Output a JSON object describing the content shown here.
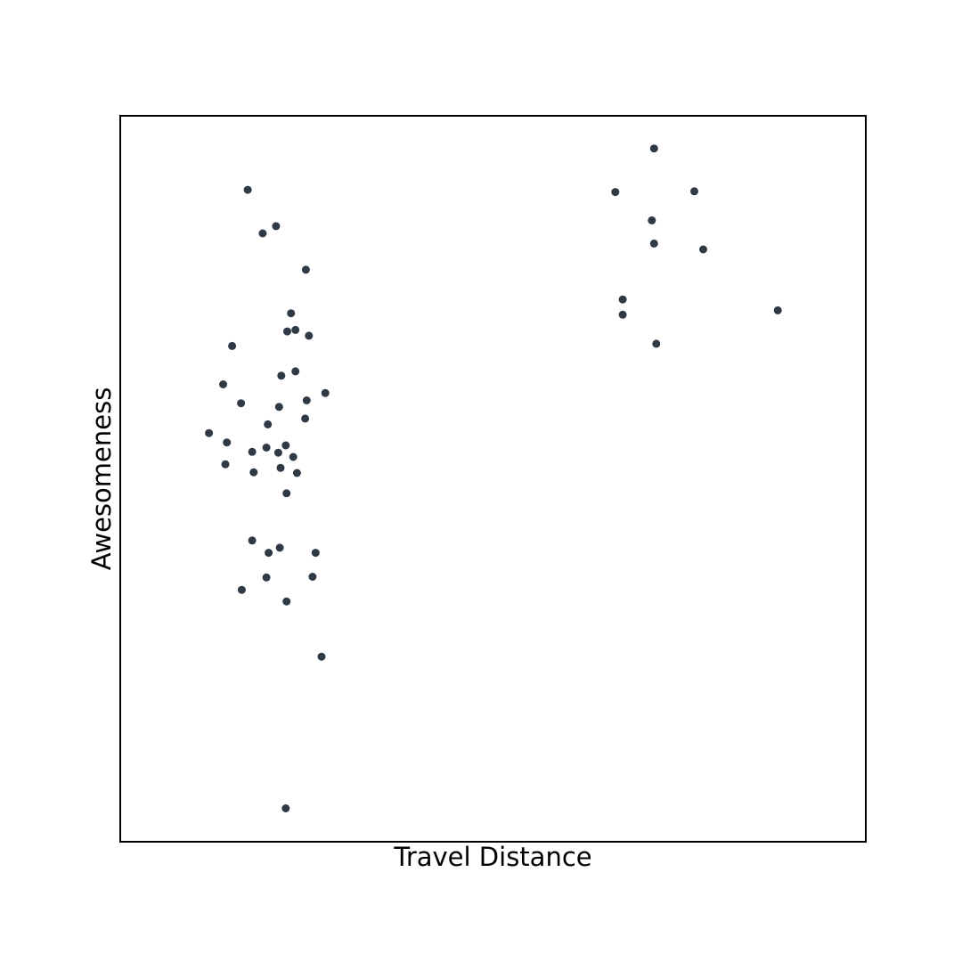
{
  "chart_data": {
    "type": "scatter",
    "title": "",
    "xlabel": "Travel Distance",
    "ylabel": "Awesomeness",
    "xlim": [
      0,
      100
    ],
    "ylim": [
      0,
      100
    ],
    "grid": false,
    "ticks": false,
    "point_color": "#2f3a46",
    "frame_color": "#000000",
    "series": [
      {
        "points": [
          [
            17.1,
            89.8
          ],
          [
            20.9,
            84.8
          ],
          [
            19.1,
            83.8
          ],
          [
            24.9,
            78.8
          ],
          [
            22.9,
            72.8
          ],
          [
            23.5,
            70.5
          ],
          [
            22.4,
            70.3
          ],
          [
            25.3,
            69.7
          ],
          [
            15.0,
            68.3
          ],
          [
            23.5,
            64.8
          ],
          [
            21.6,
            64.2
          ],
          [
            13.8,
            63.0
          ],
          [
            27.5,
            61.8
          ],
          [
            25.0,
            60.8
          ],
          [
            16.2,
            60.4
          ],
          [
            21.3,
            59.9
          ],
          [
            24.8,
            58.3
          ],
          [
            19.8,
            57.5
          ],
          [
            11.9,
            56.3
          ],
          [
            14.3,
            55.0
          ],
          [
            22.2,
            54.6
          ],
          [
            19.6,
            54.3
          ],
          [
            17.7,
            53.7
          ],
          [
            21.2,
            53.6
          ],
          [
            23.2,
            53.0
          ],
          [
            14.1,
            52.0
          ],
          [
            21.5,
            51.5
          ],
          [
            17.9,
            50.9
          ],
          [
            23.7,
            50.8
          ],
          [
            22.3,
            48.0
          ],
          [
            17.7,
            41.5
          ],
          [
            21.4,
            40.5
          ],
          [
            19.9,
            39.8
          ],
          [
            26.2,
            39.8
          ],
          [
            19.6,
            36.4
          ],
          [
            25.8,
            36.5
          ],
          [
            16.3,
            34.7
          ],
          [
            22.3,
            33.1
          ],
          [
            27.0,
            25.5
          ],
          [
            22.2,
            4.6
          ]
        ]
      },
      {
        "points": [
          [
            71.6,
            95.5
          ],
          [
            66.4,
            89.5
          ],
          [
            77.0,
            89.6
          ],
          [
            71.3,
            85.6
          ],
          [
            71.6,
            82.4
          ],
          [
            78.2,
            81.6
          ],
          [
            67.4,
            74.7
          ],
          [
            67.4,
            72.6
          ],
          [
            88.2,
            73.2
          ],
          [
            71.9,
            68.6
          ]
        ]
      }
    ]
  }
}
